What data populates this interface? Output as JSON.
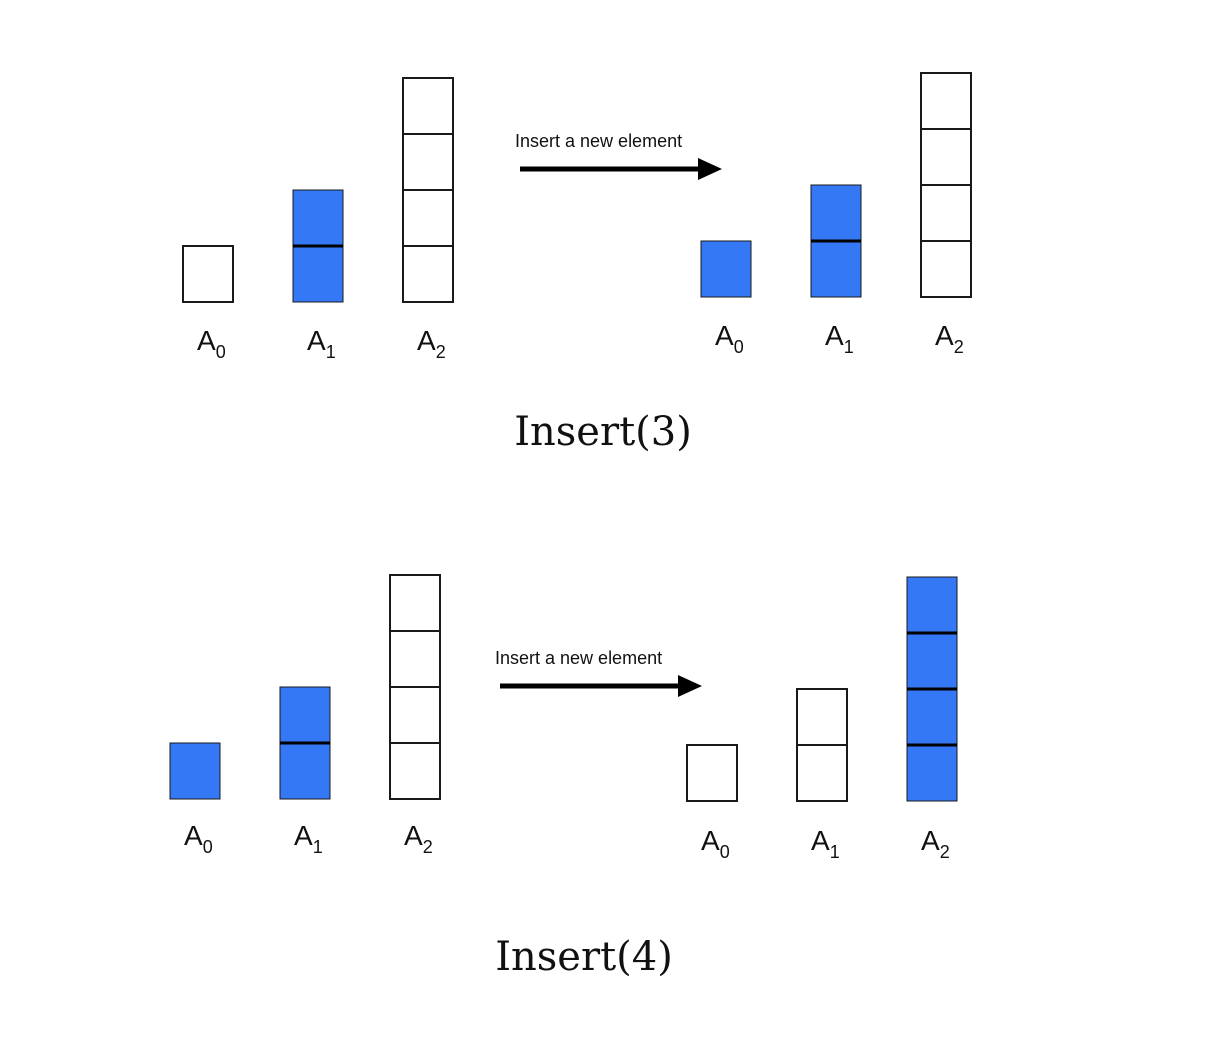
{
  "colors": {
    "filled": "#3578F6",
    "empty": "#ffffff",
    "stroke": "#1a1a1a",
    "divider": "#000000"
  },
  "panels": [
    {
      "caption": "Insert(3)",
      "arrow_label": "Insert a new element",
      "before": [
        {
          "name": "A",
          "sub": "0",
          "capacity": 1,
          "filled": 0
        },
        {
          "name": "A",
          "sub": "1",
          "capacity": 2,
          "filled": 2
        },
        {
          "name": "A",
          "sub": "2",
          "capacity": 4,
          "filled": 0
        }
      ],
      "after": [
        {
          "name": "A",
          "sub": "0",
          "capacity": 1,
          "filled": 1
        },
        {
          "name": "A",
          "sub": "1",
          "capacity": 2,
          "filled": 2
        },
        {
          "name": "A",
          "sub": "2",
          "capacity": 4,
          "filled": 0
        }
      ]
    },
    {
      "caption": "Insert(4)",
      "arrow_label": "Insert a new element",
      "before": [
        {
          "name": "A",
          "sub": "0",
          "capacity": 1,
          "filled": 1
        },
        {
          "name": "A",
          "sub": "1",
          "capacity": 2,
          "filled": 2
        },
        {
          "name": "A",
          "sub": "2",
          "capacity": 4,
          "filled": 0
        }
      ],
      "after": [
        {
          "name": "A",
          "sub": "0",
          "capacity": 1,
          "filled": 0
        },
        {
          "name": "A",
          "sub": "1",
          "capacity": 2,
          "filled": 0
        },
        {
          "name": "A",
          "sub": "2",
          "capacity": 4,
          "filled": 4
        }
      ]
    }
  ]
}
